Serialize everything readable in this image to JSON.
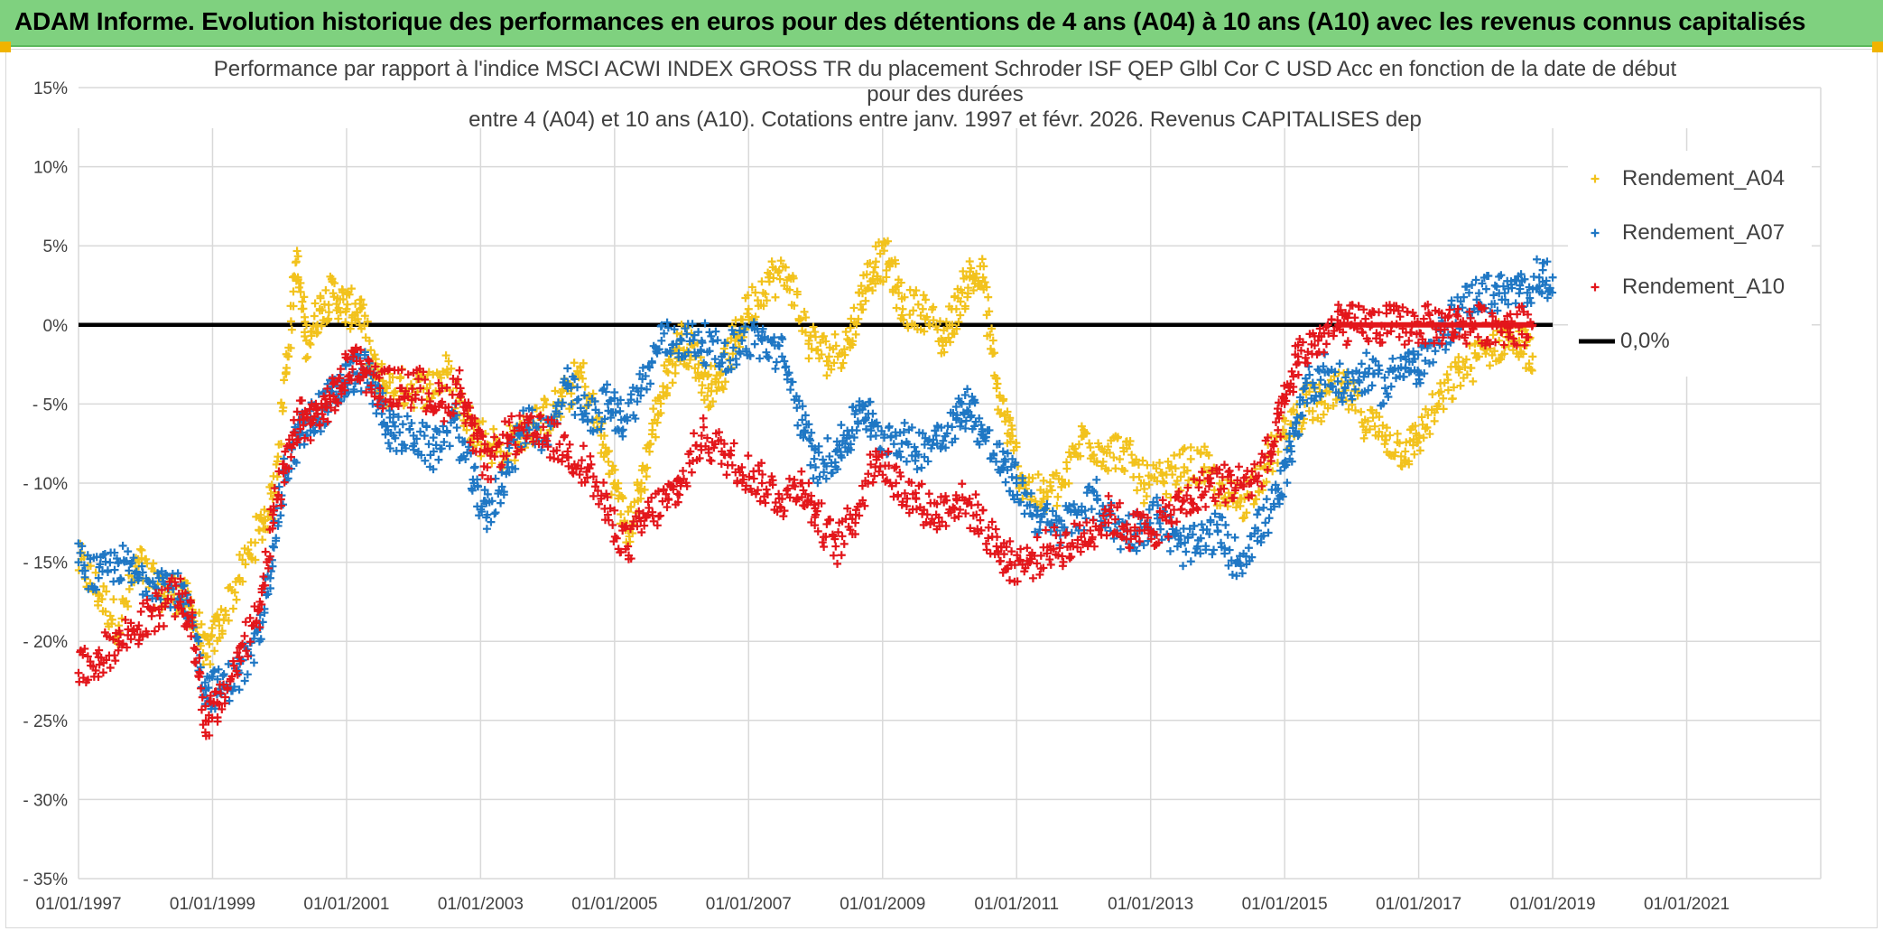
{
  "banner": {
    "text": "ADAM Informe. Evolution historique des performances en euros pour des détentions de 4 ans (A04) à 10 ans (A10) avec les revenus connus capitalisés"
  },
  "chart_data": {
    "type": "scatter",
    "title_lines": [
      "Performance par rapport à l'indice MSCI ACWI INDEX GROSS TR  du placement Schroder ISF QEP Glbl Cor C USD Acc en fonction de la date de début",
      "pour des durées",
      "entre 4 (A04) et 10 ans (A10). Cotations entre janv. 1997 et févr. 2026. Revenus CAPITALISES dep"
    ],
    "xlabel": "",
    "ylabel": "",
    "x_range": [
      1997.0,
      2023.0
    ],
    "ylim": [
      -35,
      15
    ],
    "y_ticks": [
      15,
      10,
      5,
      0,
      -5,
      -10,
      -15,
      -20,
      -25,
      -30,
      -35
    ],
    "y_tick_labels": [
      "15%",
      "10%",
      "5%",
      "0%",
      "- 5%",
      "- 10%",
      "- 15%",
      "- 20%",
      "- 25%",
      "- 30%",
      "- 35%"
    ],
    "x_ticks": [
      1997,
      1999,
      2001,
      2003,
      2005,
      2007,
      2009,
      2011,
      2013,
      2015,
      2017,
      2019,
      2021
    ],
    "x_tick_labels": [
      "01/01/1997",
      "01/01/1999",
      "01/01/2001",
      "01/01/2003",
      "01/01/2005",
      "01/01/2007",
      "01/01/2009",
      "01/01/2011",
      "01/01/2013",
      "01/01/2015",
      "01/01/2017",
      "01/01/2019",
      "01/01/2021"
    ],
    "legend_position": "right",
    "series": [
      {
        "name": "Rendement_A04",
        "color": "#f2c21c",
        "marker": "plus",
        "points": [
          [
            1997.0,
            -15
          ],
          [
            1997.3,
            -17
          ],
          [
            1997.6,
            -19
          ],
          [
            1997.9,
            -15
          ],
          [
            1998.2,
            -17
          ],
          [
            1998.5,
            -17
          ],
          [
            1998.7,
            -18
          ],
          [
            1998.9,
            -21
          ],
          [
            1999.1,
            -19
          ],
          [
            1999.4,
            -16
          ],
          [
            1999.7,
            -13
          ],
          [
            1999.9,
            -11
          ],
          [
            2000.1,
            -3
          ],
          [
            2000.25,
            4
          ],
          [
            2000.4,
            -1
          ],
          [
            2000.6,
            1
          ],
          [
            2000.8,
            2
          ],
          [
            2001.0,
            1
          ],
          [
            2001.2,
            1
          ],
          [
            2001.4,
            -3
          ],
          [
            2001.6,
            -4
          ],
          [
            2001.9,
            -4
          ],
          [
            2002.2,
            -4
          ],
          [
            2002.5,
            -3
          ],
          [
            2002.8,
            -6
          ],
          [
            2003.0,
            -7
          ],
          [
            2003.3,
            -8
          ],
          [
            2003.6,
            -7
          ],
          [
            2003.9,
            -6
          ],
          [
            2004.2,
            -5
          ],
          [
            2004.5,
            -3
          ],
          [
            2004.8,
            -7
          ],
          [
            2005.0,
            -10
          ],
          [
            2005.2,
            -13
          ],
          [
            2005.4,
            -10
          ],
          [
            2005.6,
            -6
          ],
          [
            2005.8,
            -3
          ],
          [
            2006.0,
            -1
          ],
          [
            2006.2,
            -2
          ],
          [
            2006.4,
            -4
          ],
          [
            2006.6,
            -3
          ],
          [
            2006.8,
            -1
          ],
          [
            2007.0,
            1
          ],
          [
            2007.3,
            3
          ],
          [
            2007.6,
            3
          ],
          [
            2007.9,
            -1
          ],
          [
            2008.2,
            -2
          ],
          [
            2008.5,
            -1
          ],
          [
            2008.7,
            2
          ],
          [
            2008.9,
            4
          ],
          [
            2009.1,
            4
          ],
          [
            2009.3,
            1
          ],
          [
            2009.6,
            1
          ],
          [
            2009.9,
            -1
          ],
          [
            2010.1,
            1
          ],
          [
            2010.3,
            3
          ],
          [
            2010.5,
            3
          ],
          [
            2010.7,
            -4
          ],
          [
            2010.9,
            -7
          ],
          [
            2011.1,
            -10
          ],
          [
            2011.4,
            -11
          ],
          [
            2011.7,
            -10
          ],
          [
            2012.0,
            -7
          ],
          [
            2012.3,
            -8
          ],
          [
            2012.6,
            -8
          ],
          [
            2012.9,
            -10
          ],
          [
            2013.2,
            -10
          ],
          [
            2013.5,
            -9
          ],
          [
            2013.8,
            -9
          ],
          [
            2014.1,
            -11
          ],
          [
            2014.4,
            -11
          ],
          [
            2014.7,
            -9
          ],
          [
            2015.0,
            -7
          ],
          [
            2015.3,
            -5
          ],
          [
            2015.6,
            -5
          ],
          [
            2015.9,
            -4
          ],
          [
            2016.2,
            -6
          ],
          [
            2016.5,
            -7
          ],
          [
            2016.8,
            -8
          ],
          [
            2017.0,
            -7
          ],
          [
            2017.3,
            -5
          ],
          [
            2017.6,
            -3
          ],
          [
            2017.9,
            -2
          ],
          [
            2018.2,
            -1
          ],
          [
            2018.5,
            -1
          ],
          [
            2018.7,
            -2
          ]
        ]
      },
      {
        "name": "Rendement_A07",
        "color": "#1f77c4",
        "marker": "plus",
        "points": [
          [
            1997.0,
            -15
          ],
          [
            1997.3,
            -16
          ],
          [
            1997.6,
            -15
          ],
          [
            1997.9,
            -16
          ],
          [
            1998.2,
            -16
          ],
          [
            1998.5,
            -17
          ],
          [
            1998.7,
            -19
          ],
          [
            1998.9,
            -23
          ],
          [
            1999.1,
            -23
          ],
          [
            1999.4,
            -22
          ],
          [
            1999.7,
            -20
          ],
          [
            1999.9,
            -14
          ],
          [
            2000.1,
            -9
          ],
          [
            2000.3,
            -7
          ],
          [
            2000.5,
            -6
          ],
          [
            2000.7,
            -5
          ],
          [
            2000.9,
            -4
          ],
          [
            2001.1,
            -3
          ],
          [
            2001.3,
            -3
          ],
          [
            2001.5,
            -5
          ],
          [
            2001.7,
            -7
          ],
          [
            2002.0,
            -7
          ],
          [
            2002.3,
            -8
          ],
          [
            2002.6,
            -6
          ],
          [
            2002.9,
            -10
          ],
          [
            2003.1,
            -12
          ],
          [
            2003.4,
            -9
          ],
          [
            2003.7,
            -6
          ],
          [
            2004.0,
            -7
          ],
          [
            2004.3,
            -4
          ],
          [
            2004.6,
            -6
          ],
          [
            2004.9,
            -5
          ],
          [
            2005.1,
            -6
          ],
          [
            2005.4,
            -4
          ],
          [
            2005.7,
            -1
          ],
          [
            2006.0,
            -1
          ],
          [
            2006.3,
            -1
          ],
          [
            2006.6,
            -2
          ],
          [
            2006.9,
            -1
          ],
          [
            2007.2,
            -1
          ],
          [
            2007.5,
            -2
          ],
          [
            2007.8,
            -6
          ],
          [
            2008.0,
            -9
          ],
          [
            2008.3,
            -8
          ],
          [
            2008.5,
            -7
          ],
          [
            2008.7,
            -5
          ],
          [
            2008.9,
            -7
          ],
          [
            2009.2,
            -7
          ],
          [
            2009.5,
            -8
          ],
          [
            2009.8,
            -7
          ],
          [
            2010.1,
            -6
          ],
          [
            2010.3,
            -5
          ],
          [
            2010.5,
            -7
          ],
          [
            2010.8,
            -9
          ],
          [
            2011.0,
            -10
          ],
          [
            2011.3,
            -12
          ],
          [
            2011.6,
            -13
          ],
          [
            2011.9,
            -12
          ],
          [
            2012.2,
            -11
          ],
          [
            2012.5,
            -13
          ],
          [
            2012.8,
            -13
          ],
          [
            2013.1,
            -12
          ],
          [
            2013.4,
            -14
          ],
          [
            2013.7,
            -14
          ],
          [
            2014.0,
            -13
          ],
          [
            2014.3,
            -15
          ],
          [
            2014.6,
            -13
          ],
          [
            2014.9,
            -11
          ],
          [
            2015.1,
            -8
          ],
          [
            2015.3,
            -4
          ],
          [
            2015.6,
            -3
          ],
          [
            2015.9,
            -4
          ],
          [
            2016.2,
            -3
          ],
          [
            2016.5,
            -4
          ],
          [
            2016.8,
            -2
          ],
          [
            2017.0,
            -3
          ],
          [
            2017.3,
            -1
          ],
          [
            2017.6,
            1
          ],
          [
            2017.9,
            2
          ],
          [
            2018.2,
            2
          ],
          [
            2018.5,
            2
          ],
          [
            2018.8,
            3
          ],
          [
            2019.0,
            3
          ]
        ]
      },
      {
        "name": "Rendement_A10",
        "color": "#e3161b",
        "marker": "plus",
        "points": [
          [
            1997.0,
            -22
          ],
          [
            1997.3,
            -21
          ],
          [
            1997.6,
            -20
          ],
          [
            1997.9,
            -19
          ],
          [
            1998.2,
            -18
          ],
          [
            1998.5,
            -17
          ],
          [
            1998.7,
            -19
          ],
          [
            1998.9,
            -25
          ],
          [
            1999.1,
            -24
          ],
          [
            1999.4,
            -21
          ],
          [
            1999.7,
            -18
          ],
          [
            1999.9,
            -12
          ],
          [
            2000.1,
            -9
          ],
          [
            2000.3,
            -6
          ],
          [
            2000.5,
            -6
          ],
          [
            2000.7,
            -5
          ],
          [
            2000.9,
            -4
          ],
          [
            2001.1,
            -2
          ],
          [
            2001.3,
            -3
          ],
          [
            2001.5,
            -4
          ],
          [
            2001.8,
            -4
          ],
          [
            2002.1,
            -4
          ],
          [
            2002.4,
            -5
          ],
          [
            2002.7,
            -4
          ],
          [
            2002.9,
            -7
          ],
          [
            2003.1,
            -9
          ],
          [
            2003.4,
            -7
          ],
          [
            2003.7,
            -7
          ],
          [
            2004.0,
            -7
          ],
          [
            2004.3,
            -8
          ],
          [
            2004.6,
            -9
          ],
          [
            2004.9,
            -12
          ],
          [
            2005.2,
            -14
          ],
          [
            2005.5,
            -12
          ],
          [
            2005.8,
            -11
          ],
          [
            2006.0,
            -10
          ],
          [
            2006.3,
            -7
          ],
          [
            2006.6,
            -8
          ],
          [
            2006.9,
            -9
          ],
          [
            2007.2,
            -10
          ],
          [
            2007.5,
            -11
          ],
          [
            2007.8,
            -10
          ],
          [
            2008.0,
            -12
          ],
          [
            2008.3,
            -14
          ],
          [
            2008.6,
            -12
          ],
          [
            2008.9,
            -8
          ],
          [
            2009.2,
            -10
          ],
          [
            2009.5,
            -11
          ],
          [
            2009.8,
            -12
          ],
          [
            2010.1,
            -11
          ],
          [
            2010.4,
            -12
          ],
          [
            2010.7,
            -14
          ],
          [
            2010.9,
            -15
          ],
          [
            2011.2,
            -15
          ],
          [
            2011.5,
            -14
          ],
          [
            2011.8,
            -14
          ],
          [
            2012.1,
            -13
          ],
          [
            2012.4,
            -12
          ],
          [
            2012.7,
            -13
          ],
          [
            2013.0,
            -13
          ],
          [
            2013.3,
            -12
          ],
          [
            2013.6,
            -11
          ],
          [
            2013.9,
            -10
          ],
          [
            2014.2,
            -10
          ],
          [
            2014.5,
            -10
          ],
          [
            2014.8,
            -8
          ],
          [
            2015.0,
            -5
          ],
          [
            2015.2,
            -2
          ],
          [
            2015.5,
            -1
          ],
          [
            2015.8,
            0
          ],
          [
            2016.0,
            0
          ],
          [
            2016.3,
            0
          ],
          [
            2016.6,
            0
          ],
          [
            2016.9,
            0
          ],
          [
            2017.2,
            0
          ],
          [
            2017.5,
            0
          ],
          [
            2017.8,
            0
          ],
          [
            2018.1,
            0
          ],
          [
            2018.4,
            0
          ],
          [
            2018.7,
            0
          ]
        ]
      },
      {
        "name": "0,0%",
        "color": "#000000",
        "marker": "line",
        "points": [
          [
            1997.0,
            0
          ],
          [
            2019.0,
            0
          ]
        ]
      }
    ]
  }
}
